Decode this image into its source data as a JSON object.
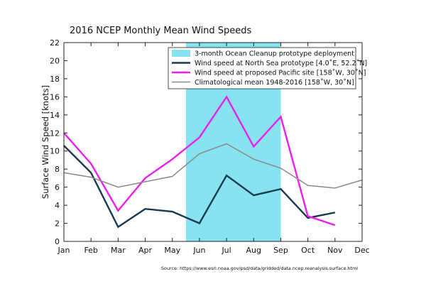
{
  "chart_data": {
    "type": "line",
    "title": "2016 NCEP Monthly Mean Wind Speeds",
    "ylabel": "Surface Wind Speed [knots]",
    "xlabel": "",
    "categories": [
      "Jan",
      "Feb",
      "Mar",
      "Apr",
      "May",
      "Jun",
      "Jul",
      "Aug",
      "Sep",
      "Oct",
      "Nov",
      "Dec"
    ],
    "ylim": [
      0,
      22
    ],
    "yticks": [
      0,
      2,
      4,
      6,
      8,
      10,
      12,
      14,
      16,
      18,
      20,
      22
    ],
    "grid": false,
    "legend_position": "top-right",
    "shaded_region": {
      "label": "3-month Ocean Cleanup prototype deployment",
      "start_month_index": 4.5,
      "end_month_index": 8.0,
      "color": "#87e3ef"
    },
    "series": [
      {
        "name": "Wind speed at North Sea prototype [4.0˚E, 52.2˚N]",
        "color": "#173a52",
        "values": [
          10.6,
          7.6,
          1.6,
          3.6,
          3.3,
          2.0,
          7.3,
          5.1,
          5.8,
          2.6,
          3.2,
          null
        ]
      },
      {
        "name": "Wind speed at proposed Pacific site [158˚W, 30˚N]",
        "color": "#ee1ef0",
        "values": [
          12.0,
          8.6,
          3.4,
          7.0,
          9.1,
          11.5,
          16.0,
          10.5,
          13.8,
          2.8,
          1.8,
          null
        ]
      },
      {
        "name": "Climatological mean 1948-2016 [158˚W, 30˚N]",
        "color": "#8a8a8a",
        "values": [
          7.6,
          7.1,
          6.0,
          6.6,
          7.2,
          9.7,
          10.8,
          9.1,
          8.1,
          6.2,
          5.9,
          6.8
        ]
      }
    ]
  },
  "source_note": "Source: https://www.esrl.noaa.gov/psd/data/gridded/data.ncep.reanalysis.surface.html"
}
